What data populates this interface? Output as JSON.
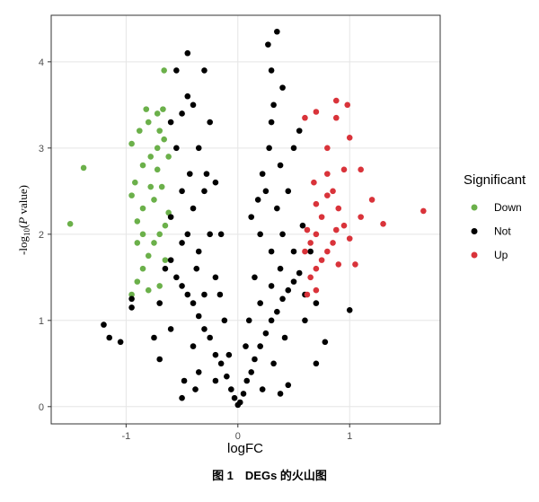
{
  "chart_data": {
    "type": "scatter",
    "xlabel": "logFC",
    "ylabel": [
      "-log",
      "10",
      "(",
      "P",
      " value)"
    ],
    "legend_title": "Significant",
    "caption": "图 1　DEGs 的火山图",
    "xlim": [
      -1.67,
      1.81
    ],
    "ylim": [
      -0.2,
      4.54
    ],
    "xticks": [
      -1,
      0,
      1
    ],
    "yticks": [
      0,
      1,
      2,
      3,
      4
    ],
    "grid": true,
    "legend": "right",
    "series": [
      {
        "name": "Down",
        "color": "#6bb04a",
        "x": [
          -1.5,
          -1.38,
          -0.95,
          -0.9,
          -0.85,
          -0.8,
          -0.75,
          -0.7,
          -0.65,
          -0.9,
          -0.85,
          -0.75,
          -0.68,
          -0.92,
          -0.85,
          -0.78,
          -0.72,
          -0.66,
          -0.95,
          -0.88,
          -0.8,
          -0.72,
          -0.82,
          -0.67,
          -0.66,
          -0.95,
          -0.62,
          -0.8,
          -0.7,
          -0.65,
          -0.9,
          -0.72,
          -0.62,
          -0.78,
          -0.85,
          -0.7
        ],
        "values": [
          2.12,
          2.77,
          1.3,
          1.45,
          1.6,
          1.75,
          1.9,
          2.0,
          2.1,
          2.15,
          2.3,
          2.4,
          2.55,
          2.6,
          2.8,
          2.9,
          3.0,
          3.1,
          3.05,
          3.2,
          3.3,
          3.4,
          3.45,
          3.45,
          3.9,
          2.45,
          2.25,
          1.35,
          1.4,
          1.7,
          1.9,
          2.75,
          2.9,
          2.55,
          2.0,
          3.2
        ]
      },
      {
        "name": "Not",
        "color": "#000000",
        "x": [
          0,
          0.02,
          -0.03,
          0.05,
          -0.06,
          0.08,
          -0.1,
          0.12,
          -0.15,
          0.15,
          -0.2,
          0.2,
          -0.25,
          0.25,
          -0.3,
          0.3,
          -0.35,
          0.35,
          -0.4,
          0.4,
          -0.45,
          0.45,
          -0.5,
          0.5,
          -0.55,
          0.55,
          -0.12,
          0.1,
          -0.2,
          0.15,
          -0.25,
          0.2,
          -0.3,
          0.25,
          -0.35,
          0.28,
          -0.4,
          0.32,
          -0.45,
          0.4,
          -0.5,
          0.45,
          -0.55,
          0.5,
          -0.6,
          0.55,
          -0.45,
          0.35,
          0.27,
          -0.55,
          -0.3,
          0.3,
          -0.35,
          0.32,
          -0.4,
          0.42,
          -0.6,
          0.6,
          -0.7,
          0.7,
          -0.75,
          0.78,
          -0.95,
          1.0,
          -1.2,
          -1.15,
          -1.05,
          -0.95,
          -0.7,
          0.45,
          -0.48,
          0.7,
          -0.35,
          0.3,
          -0.4,
          0.35,
          -0.28,
          0.22,
          -0.5,
          0.5,
          -0.6,
          0.6,
          -0.6,
          0.58,
          -0.15,
          0.12,
          -0.2,
          0.18,
          -0.25,
          0.3,
          -0.45,
          0.4,
          -0.38,
          0.38,
          -0.5,
          -0.65,
          0.65,
          -0.08,
          0.07,
          -0.16,
          0.2,
          -0.3,
          0.3,
          -0.37,
          0.38,
          -0.43,
          0.38,
          -0.5,
          -0.2,
          0.22
        ],
        "values": [
          0.02,
          0.05,
          0.1,
          0.15,
          0.2,
          0.3,
          0.35,
          0.4,
          0.5,
          0.55,
          0.6,
          0.7,
          0.8,
          0.85,
          0.9,
          1.0,
          1.05,
          1.1,
          1.2,
          1.25,
          1.3,
          1.35,
          1.4,
          1.45,
          1.5,
          1.55,
          1.0,
          1.0,
          1.5,
          1.5,
          2.0,
          2.0,
          2.5,
          2.5,
          3.0,
          3.0,
          3.5,
          3.5,
          2.0,
          2.0,
          2.5,
          2.5,
          3.0,
          3.0,
          3.3,
          3.2,
          4.1,
          4.35,
          4.2,
          3.9,
          3.9,
          3.9,
          0.4,
          0.5,
          0.7,
          0.8,
          0.9,
          1.0,
          1.2,
          1.2,
          0.8,
          0.75,
          1.25,
          1.12,
          0.95,
          0.8,
          0.75,
          1.15,
          0.55,
          0.25,
          0.3,
          0.5,
          1.8,
          1.8,
          2.3,
          2.3,
          2.7,
          2.7,
          1.9,
          1.8,
          2.2,
          1.3,
          1.7,
          2.1,
          2.0,
          2.2,
          2.6,
          2.4,
          3.3,
          3.3,
          3.6,
          3.7,
          0.2,
          0.15,
          0.1,
          1.6,
          1.8,
          0.6,
          0.7,
          1.3,
          1.2,
          1.3,
          1.4,
          1.6,
          1.6,
          2.7,
          2.8,
          3.4,
          0.3,
          0.2
        ]
      },
      {
        "name": "Up",
        "color": "#d9333a",
        "x": [
          1.66,
          1.3,
          1.2,
          1.1,
          1.05,
          1.0,
          0.95,
          0.9,
          0.85,
          0.8,
          0.75,
          0.7,
          0.65,
          0.6,
          0.65,
          0.7,
          0.62,
          0.8,
          0.85,
          0.75,
          0.9,
          0.7,
          0.88,
          1.1,
          1.0,
          0.98,
          0.88,
          0.88,
          0.7,
          0.6,
          0.8,
          0.8,
          0.68,
          0.7,
          0.95,
          0.62
        ],
        "values": [
          2.27,
          2.12,
          2.4,
          2.2,
          1.65,
          1.95,
          2.1,
          2.3,
          2.5,
          2.45,
          2.2,
          2.0,
          1.9,
          1.8,
          1.5,
          1.35,
          1.3,
          1.8,
          1.9,
          1.7,
          1.65,
          1.6,
          2.05,
          2.75,
          3.12,
          3.5,
          3.55,
          3.35,
          3.42,
          3.35,
          3.0,
          2.7,
          2.6,
          2.35,
          2.75,
          2.05
        ]
      }
    ]
  }
}
